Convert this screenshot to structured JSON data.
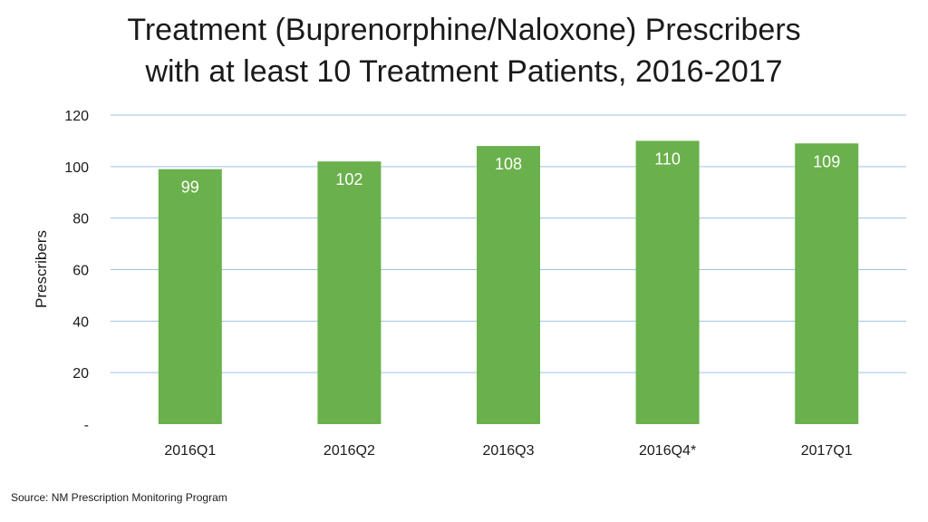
{
  "title_lines": [
    "Treatment (Buprenorphine/Naloxone) Prescribers",
    "with at least 10 Treatment Patients, 2016-2017"
  ],
  "source": "Source:  NM Prescription Monitoring Program",
  "colors": {
    "bar": "#6ab04c",
    "grid": "#9dc3e6",
    "data_label": "#ffffff",
    "text": "#1a1a1a"
  },
  "chart_data": {
    "type": "bar",
    "title": "Treatment (Buprenorphine/Naloxone) Prescribers with at least 10 Treatment Patients, 2016-2017",
    "xlabel": "",
    "ylabel": "Prescribers",
    "categories": [
      "2016Q1",
      "2016Q2",
      "2016Q3",
      "2016Q4*",
      "2017Q1"
    ],
    "values": [
      99,
      102,
      108,
      110,
      109
    ],
    "data_labels": [
      "99",
      "102",
      "108",
      "110",
      "109"
    ],
    "ylim": [
      0,
      120
    ],
    "yticks": [
      0,
      20,
      40,
      60,
      80,
      100,
      120
    ],
    "ytick_labels": [
      "-",
      "20",
      "40",
      "60",
      "80",
      "100",
      "120"
    ],
    "grid": true,
    "legend": "none"
  }
}
